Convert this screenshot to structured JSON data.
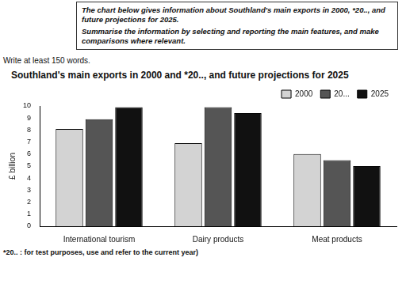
{
  "task": {
    "lines": [
      "The chart below gives information about Southland's main exports in 2000, *20.., and future projections for 2025.",
      "Summarise the information by selecting and reporting the main features, and make comparisons where relevant."
    ]
  },
  "instruction": "Write at least 150 words.",
  "footnote": "*20.. : for test purposes, use and refer to the current year)",
  "chart_data": {
    "type": "bar",
    "title": "Southland's main exports in 2000 and *20.., and future projections for 2025",
    "y_label": "£ billion",
    "categories": [
      "International tourism",
      "Dairy products",
      "Meat products"
    ],
    "series": [
      {
        "name": "2000",
        "color": "#d3d3d3",
        "values": [
          8.1,
          6.9,
          6.0
        ]
      },
      {
        "name": "20...",
        "color": "#555555",
        "values": [
          8.9,
          9.9,
          5.5
        ]
      },
      {
        "name": "2025",
        "color": "#111111",
        "values": [
          9.9,
          9.4,
          5.0
        ]
      }
    ],
    "ylim": [
      0,
      10
    ],
    "yticks": [
      0,
      1,
      2,
      3,
      4,
      5,
      6,
      7,
      8,
      9,
      10
    ],
    "grid": false,
    "legend": "upper right"
  }
}
